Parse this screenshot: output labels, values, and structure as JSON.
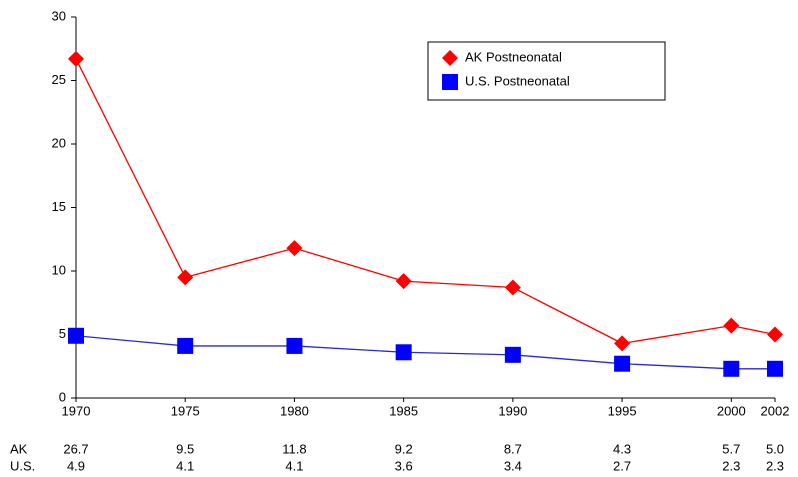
{
  "chart_data": {
    "type": "line",
    "x": [
      1970,
      1975,
      1980,
      1985,
      1990,
      1995,
      2000,
      2002
    ],
    "series": [
      {
        "name": "AK Postneonatal",
        "color": "#ff0000",
        "line_color": "#ff0000",
        "marker": "diamond",
        "values": [
          26.7,
          9.5,
          11.8,
          9.2,
          8.7,
          4.3,
          5.7,
          5.0
        ],
        "value_labels": [
          "26.7",
          "9.5",
          "11.8",
          "9.2",
          "8.7",
          "4.3",
          "5.7",
          "5.0"
        ]
      },
      {
        "name": "U.S. Postneonatal",
        "color": "#0000ff",
        "line_color": "#2a2acc",
        "marker": "square",
        "values": [
          4.9,
          4.1,
          4.1,
          3.6,
          3.4,
          2.7,
          2.3,
          2.3
        ],
        "value_labels": [
          "4.9",
          "4.1",
          "4.1",
          "3.6",
          "3.4",
          "2.7",
          "2.3",
          "2.3"
        ]
      }
    ],
    "table_row_labels": [
      "AK",
      "U.S."
    ],
    "xlim": [
      1970,
      2002
    ],
    "xticks": [
      1970,
      1975,
      1980,
      1985,
      1990,
      1995,
      2000,
      2002
    ],
    "ylim": [
      0,
      30
    ],
    "yticks": [
      0,
      5,
      10,
      15,
      20,
      25,
      30
    ],
    "grid": false
  }
}
